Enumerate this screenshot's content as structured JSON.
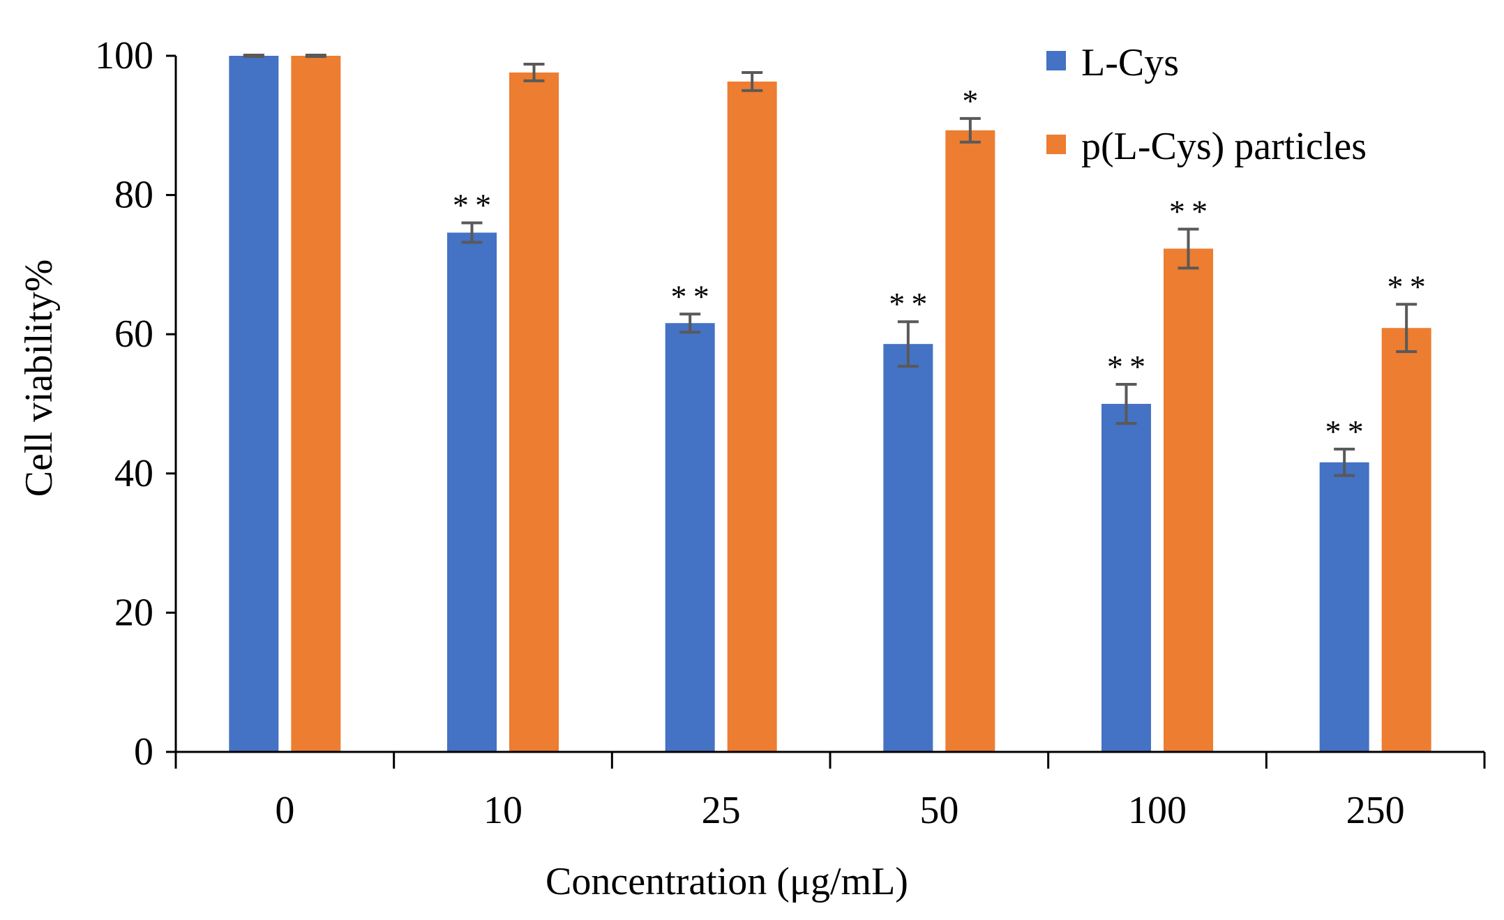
{
  "chart_data": {
    "type": "bar",
    "title": "",
    "xlabel": "Concentration (μg/mL)",
    "ylabel": "Cell viability%",
    "ylim": [
      0,
      100
    ],
    "yticks": [
      "0",
      "20",
      "40",
      "60",
      "80",
      "100"
    ],
    "categories": [
      "0",
      "10",
      "25",
      "50",
      "100",
      "250"
    ],
    "grid": false,
    "legend_position": "top-right",
    "series": [
      {
        "name": "L-Cys",
        "color": "#4472C4",
        "values": [
          100,
          74.6,
          61.6,
          58.6,
          50.0,
          41.6
        ],
        "errors": [
          0.1,
          1.4,
          1.3,
          3.2,
          2.8,
          1.9
        ],
        "significance": [
          "",
          "**",
          "**",
          "**",
          "**",
          "**"
        ]
      },
      {
        "name": "p(L-Cys) particles",
        "color": "#ED7D31",
        "values": [
          100,
          97.6,
          96.3,
          89.3,
          72.3,
          60.9
        ],
        "errors": [
          0.1,
          1.2,
          1.3,
          1.7,
          2.8,
          3.4
        ],
        "significance": [
          "",
          "",
          "",
          "*",
          "**",
          "**"
        ]
      }
    ],
    "error_bar_color": "#595959",
    "axis_color": "#000000"
  }
}
